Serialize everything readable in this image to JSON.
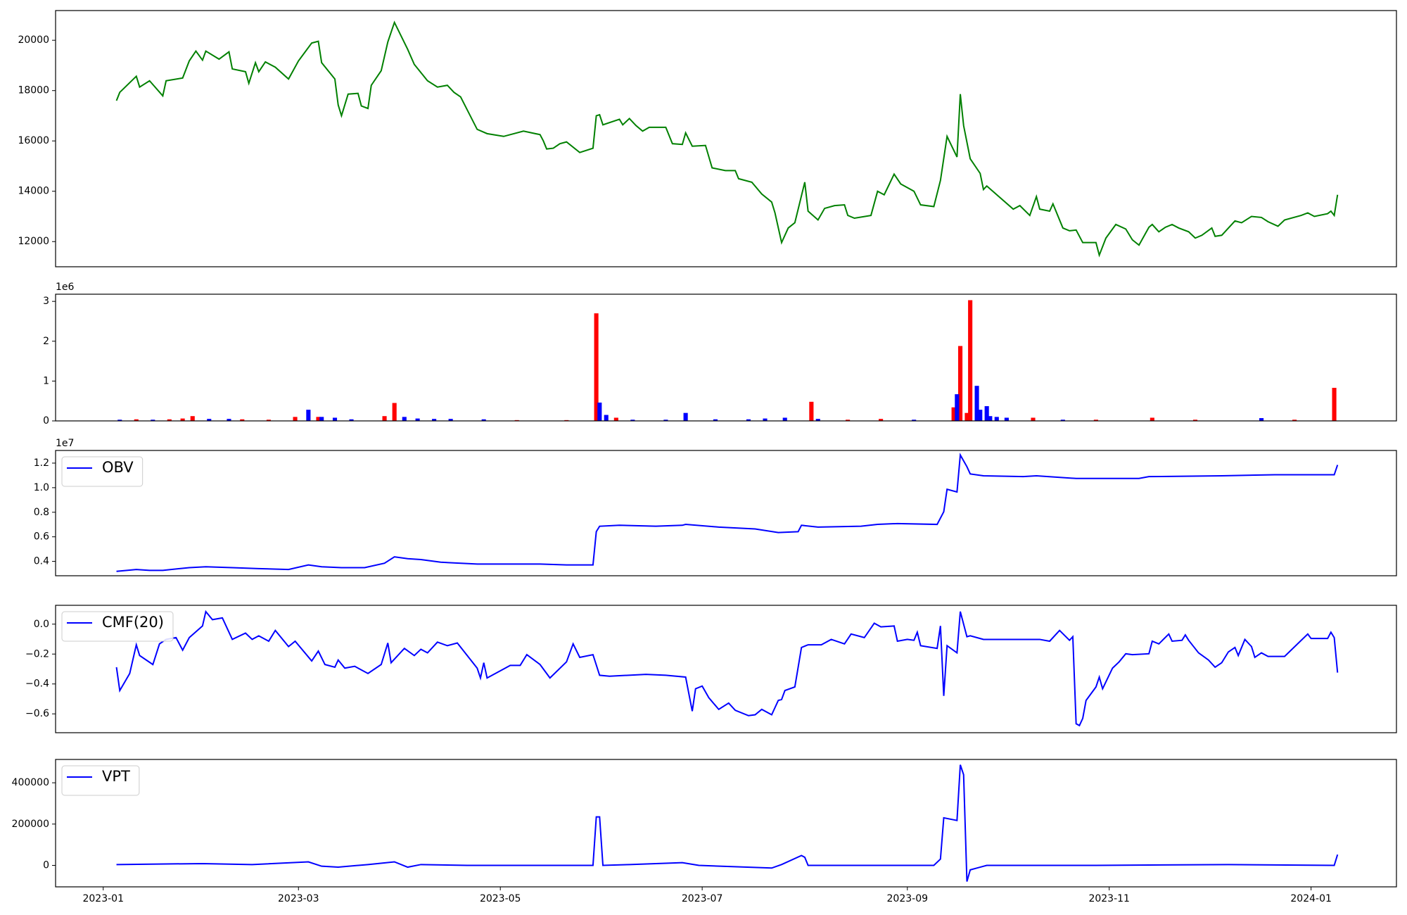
{
  "chart_data": [
    {
      "type": "line",
      "xlim": [
        -14.4,
        390.8
      ],
      "ylim": [
        11000,
        21180
      ],
      "yticks": [
        12000,
        14000,
        16000,
        18000,
        20000
      ],
      "x": [
        4,
        5,
        10,
        11,
        14,
        18,
        19,
        24,
        26,
        28,
        30,
        31,
        35,
        38,
        39,
        43,
        44,
        46,
        47,
        49,
        52,
        56,
        59,
        63,
        65,
        66,
        70,
        71,
        72,
        74,
        77,
        78,
        80,
        81,
        84,
        86,
        88,
        92,
        94,
        98,
        101,
        104,
        106,
        108,
        113,
        116,
        121,
        127,
        132,
        133,
        134,
        136,
        138,
        140,
        144,
        148,
        149,
        150,
        151,
        156,
        157,
        159,
        161,
        163,
        165,
        170,
        172,
        175,
        176,
        178,
        182,
        184,
        188,
        191,
        192,
        196,
        199,
        202,
        203,
        205,
        207,
        209,
        212,
        213,
        216,
        218,
        221,
        224,
        225,
        227,
        232,
        234,
        236,
        239,
        241,
        245,
        247,
        251,
        253,
        255,
        258,
        259,
        260,
        262,
        265,
        266,
        267,
        275,
        277,
        280,
        282,
        283,
        286,
        287,
        290,
        292,
        294,
        296,
        300,
        301,
        303,
        306,
        309,
        311,
        313,
        316,
        317,
        319,
        321,
        323,
        325,
        328,
        330,
        332,
        335,
        336,
        338,
        342,
        344,
        347,
        350,
        352,
        355,
        357,
        362,
        364,
        366,
        370,
        371,
        372,
        373
      ],
      "series": [
        {
          "color": "#008000",
          "values": [
            17600,
            17930,
            18570,
            18140,
            18390,
            17790,
            18390,
            18500,
            19180,
            19570,
            19210,
            19570,
            19250,
            19540,
            18860,
            18750,
            18290,
            19110,
            18750,
            19140,
            18930,
            18460,
            19180,
            19890,
            19960,
            19110,
            18460,
            17430,
            17000,
            17860,
            17890,
            17390,
            17290,
            18210,
            18790,
            19930,
            20710,
            19640,
            19040,
            18390,
            18140,
            18210,
            17930,
            17750,
            16460,
            16290,
            16180,
            16390,
            16250,
            16000,
            15680,
            15710,
            15890,
            15960,
            15540,
            15710,
            17000,
            17040,
            16640,
            16860,
            16640,
            16890,
            16610,
            16390,
            16540,
            16540,
            15890,
            15860,
            16320,
            15790,
            15820,
            14930,
            14820,
            14820,
            14500,
            14360,
            13890,
            13570,
            13140,
            11960,
            12540,
            12750,
            14360,
            13210,
            12860,
            13320,
            13430,
            13460,
            13040,
            12930,
            13040,
            14000,
            13860,
            14680,
            14290,
            14000,
            13460,
            13390,
            14430,
            16180,
            15360,
            17860,
            16610,
            15290,
            14710,
            14070,
            14210,
            13290,
            13430,
            13040,
            13790,
            13290,
            13210,
            13500,
            12540,
            12430,
            12460,
            11960,
            11960,
            11460,
            12140,
            12680,
            12500,
            12070,
            11860,
            12570,
            12680,
            12390,
            12570,
            12680,
            12540,
            12390,
            12140,
            12250,
            12540,
            12210,
            12250,
            12820,
            12750,
            13000,
            12960,
            12790,
            12610,
            12860,
            13040,
            13140,
            13000,
            13110,
            13210,
            13040,
            13860
          ]
        }
      ]
    },
    {
      "type": "bar",
      "offset_text": "1e6",
      "xlim": [
        -14.4,
        390.8
      ],
      "ylim": [
        0,
        3.18
      ],
      "yticks": [
        0,
        1,
        2,
        3
      ],
      "x": [
        5,
        10,
        15,
        20,
        24,
        27,
        32,
        38,
        42,
        50,
        58,
        62,
        65,
        66,
        70,
        75,
        85,
        88,
        91,
        95,
        100,
        105,
        115,
        125,
        140,
        149,
        150,
        152,
        155,
        160,
        170,
        176,
        185,
        195,
        200,
        206,
        214,
        216,
        225,
        235,
        245,
        257,
        258,
        259,
        261,
        262,
        264,
        265,
        267,
        268,
        270,
        273,
        281,
        290,
        300,
        317,
        330,
        350,
        360,
        372
      ],
      "series": [
        {
          "color": "#ff0000",
          "values": [
            null,
            0.04,
            null,
            0.04,
            0.06,
            0.12,
            null,
            null,
            0.04,
            0.03,
            0.1,
            null,
            0.1,
            null,
            null,
            null,
            0.12,
            0.45,
            null,
            null,
            null,
            null,
            null,
            0.02,
            0.02,
            2.7,
            null,
            null,
            0.08,
            null,
            null,
            null,
            null,
            null,
            null,
            null,
            0.48,
            null,
            0.03,
            0.05,
            null,
            0.34,
            null,
            1.88,
            0.2,
            3.03,
            null,
            null,
            null,
            null,
            null,
            null,
            0.08,
            null,
            0.03,
            0.08,
            0.03,
            null,
            0.03,
            0.83
          ]
        },
        {
          "color": "#0000ff",
          "values": [
            0.03,
            null,
            0.03,
            null,
            null,
            null,
            0.05,
            0.05,
            null,
            null,
            null,
            0.28,
            null,
            0.1,
            0.08,
            0.04,
            null,
            null,
            0.1,
            0.06,
            0.05,
            0.05,
            0.04,
            null,
            null,
            null,
            0.46,
            0.15,
            null,
            0.03,
            0.03,
            0.2,
            0.04,
            0.04,
            0.06,
            0.08,
            null,
            0.05,
            null,
            null,
            0.03,
            null,
            0.67,
            null,
            null,
            null,
            0.88,
            0.28,
            0.37,
            0.12,
            0.1,
            0.08,
            null,
            0.03,
            null,
            null,
            null,
            0.07,
            null,
            null
          ]
        }
      ]
    },
    {
      "type": "line",
      "offset_text": "1e7",
      "legend": "upper left",
      "xlim": [
        -14.4,
        390.8
      ],
      "ylim": [
        0.283,
        1.303
      ],
      "yticks": [
        0.4,
        0.6,
        0.8,
        {
          "value": 1,
          "label": "1.0"
        },
        1.2
      ],
      "x": [
        4,
        10,
        14,
        18,
        26,
        31,
        39,
        47,
        56,
        62,
        66,
        72,
        79,
        85,
        88,
        92,
        96,
        102,
        113,
        132,
        140,
        148,
        149,
        150,
        156,
        167,
        175,
        176,
        186,
        197,
        204,
        210,
        211,
        216,
        229,
        234,
        240,
        252,
        254,
        255,
        258,
        259,
        261,
        262,
        266,
        278,
        282,
        294,
        313,
        316,
        338,
        354,
        372,
        373
      ],
      "series": [
        {
          "name": "OBV",
          "color": "#0000ff",
          "values": [
            0.319,
            0.334,
            0.327,
            0.327,
            0.349,
            0.356,
            0.349,
            0.341,
            0.334,
            0.371,
            0.356,
            0.349,
            0.349,
            0.385,
            0.437,
            0.422,
            0.415,
            0.393,
            0.378,
            0.378,
            0.371,
            0.371,
            0.642,
            0.686,
            0.694,
            0.686,
            0.694,
            0.701,
            0.679,
            0.664,
            0.635,
            0.642,
            0.694,
            0.679,
            0.686,
            0.701,
            0.708,
            0.701,
            0.804,
            0.987,
            0.965,
            1.266,
            1.171,
            1.112,
            1.097,
            1.09,
            1.097,
            1.075,
            1.075,
            1.09,
            1.097,
            1.105,
            1.105,
            1.185
          ]
        }
      ]
    },
    {
      "type": "line",
      "legend": "upper left",
      "xlim": [
        -14.4,
        390.8
      ],
      "ylim": [
        -0.726,
        0.126
      ],
      "yticks": [
        {
          "value": -0.6,
          "label": "−0.6"
        },
        {
          "value": -0.4,
          "label": "−0.4"
        },
        {
          "value": -0.2,
          "label": "−0.2"
        },
        {
          "value": 0,
          "label": "0.0"
        }
      ],
      "x": [
        4,
        5,
        8,
        10,
        11,
        15,
        17,
        19,
        22,
        24,
        26,
        30,
        31,
        33,
        36,
        39,
        43,
        45,
        47,
        50,
        52,
        56,
        58,
        63,
        65,
        67,
        70,
        71,
        73,
        76,
        80,
        84,
        86,
        87,
        91,
        94,
        96,
        98,
        101,
        104,
        107,
        110,
        113,
        114,
        115,
        116,
        121,
        123,
        126,
        128,
        132,
        135,
        140,
        142,
        144,
        148,
        150,
        153,
        164,
        170,
        176,
        178,
        179,
        181,
        183,
        186,
        189,
        191,
        195,
        197,
        199,
        202,
        204,
        205,
        206,
        209,
        211,
        213,
        217,
        220,
        224,
        226,
        230,
        233,
        235,
        239,
        240,
        243,
        245,
        246,
        247,
        252,
        253,
        254,
        255,
        258,
        259,
        261,
        262,
        266,
        283,
        286,
        289,
        292,
        293,
        294,
        295,
        296,
        297,
        300,
        301,
        302,
        305,
        307,
        309,
        311,
        316,
        317,
        319,
        322,
        323,
        326,
        327,
        328,
        331,
        334,
        336,
        338,
        340,
        342,
        343,
        345,
        347,
        348,
        350,
        352,
        357,
        364,
        365,
        370,
        371,
        372,
        373
      ],
      "series": [
        {
          "name": "CMF(20)",
          "color": "#0000ff",
          "values": [
            -0.288,
            -0.444,
            -0.33,
            -0.138,
            -0.21,
            -0.27,
            -0.132,
            -0.102,
            -0.09,
            -0.174,
            -0.09,
            -0.012,
            0.084,
            0.03,
            0.042,
            -0.102,
            -0.06,
            -0.102,
            -0.078,
            -0.114,
            -0.042,
            -0.15,
            -0.114,
            -0.246,
            -0.18,
            -0.27,
            -0.288,
            -0.24,
            -0.294,
            -0.282,
            -0.33,
            -0.27,
            -0.126,
            -0.258,
            -0.162,
            -0.21,
            -0.168,
            -0.192,
            -0.12,
            -0.144,
            -0.126,
            -0.21,
            -0.294,
            -0.36,
            -0.258,
            -0.36,
            -0.3,
            -0.276,
            -0.276,
            -0.204,
            -0.27,
            -0.36,
            -0.252,
            -0.132,
            -0.222,
            -0.204,
            -0.342,
            -0.348,
            -0.336,
            -0.342,
            -0.354,
            -0.582,
            -0.432,
            -0.414,
            -0.492,
            -0.57,
            -0.528,
            -0.576,
            -0.612,
            -0.606,
            -0.57,
            -0.606,
            -0.51,
            -0.504,
            -0.444,
            -0.42,
            -0.156,
            -0.138,
            -0.138,
            -0.102,
            -0.132,
            -0.066,
            -0.09,
            0.006,
            -0.018,
            -0.012,
            -0.114,
            -0.102,
            -0.108,
            -0.054,
            -0.144,
            -0.162,
            -0.012,
            -0.48,
            -0.144,
            -0.192,
            0.084,
            -0.084,
            -0.078,
            -0.102,
            -0.102,
            -0.114,
            -0.042,
            -0.108,
            -0.084,
            -0.666,
            -0.678,
            -0.63,
            -0.51,
            -0.42,
            -0.354,
            -0.432,
            -0.294,
            -0.252,
            -0.198,
            -0.204,
            -0.198,
            -0.114,
            -0.132,
            -0.066,
            -0.114,
            -0.108,
            -0.072,
            -0.108,
            -0.192,
            -0.24,
            -0.288,
            -0.258,
            -0.186,
            -0.156,
            -0.21,
            -0.102,
            -0.15,
            -0.222,
            -0.192,
            -0.216,
            -0.216,
            -0.066,
            -0.096,
            -0.096,
            -0.054,
            -0.09,
            -0.324
          ]
        }
      ]
    },
    {
      "type": "line",
      "legend": "upper left",
      "xlim": [
        -14.4,
        390.8
      ],
      "ylim": [
        -104000,
        513000
      ],
      "yticks": [
        0,
        200000,
        400000
      ],
      "xticks": [
        {
          "value": 0,
          "label": "2023-01"
        },
        {
          "value": 59,
          "label": "2023-03"
        },
        {
          "value": 120,
          "label": "2023-05"
        },
        {
          "value": 181,
          "label": "2023-07"
        },
        {
          "value": 243,
          "label": "2023-09"
        },
        {
          "value": 304,
          "label": "2023-11"
        },
        {
          "value": 365,
          "label": "2024-01"
        }
      ],
      "x": [
        4,
        30,
        45,
        62,
        66,
        71,
        80,
        88,
        92,
        96,
        110,
        148,
        149,
        150,
        151,
        159,
        175,
        180,
        202,
        205,
        211,
        212,
        213,
        251,
        253,
        254,
        258,
        259,
        260,
        261,
        262,
        264,
        267,
        300,
        340,
        372,
        373
      ],
      "series": [
        {
          "name": "VPT",
          "color": "#0000ff",
          "values": [
            4000,
            8700,
            4000,
            17000,
            -4000,
            -8700,
            4000,
            17000,
            -8700,
            4000,
            0,
            0,
            234800,
            234800,
            0,
            4000,
            13000,
            0,
            -13000,
            4000,
            47800,
            39100,
            0,
            0,
            30400,
            230400,
            217400,
            487000,
            439100,
            -78300,
            -21700,
            -13000,
            0,
            0,
            4000,
            0,
            52200
          ]
        }
      ]
    }
  ]
}
